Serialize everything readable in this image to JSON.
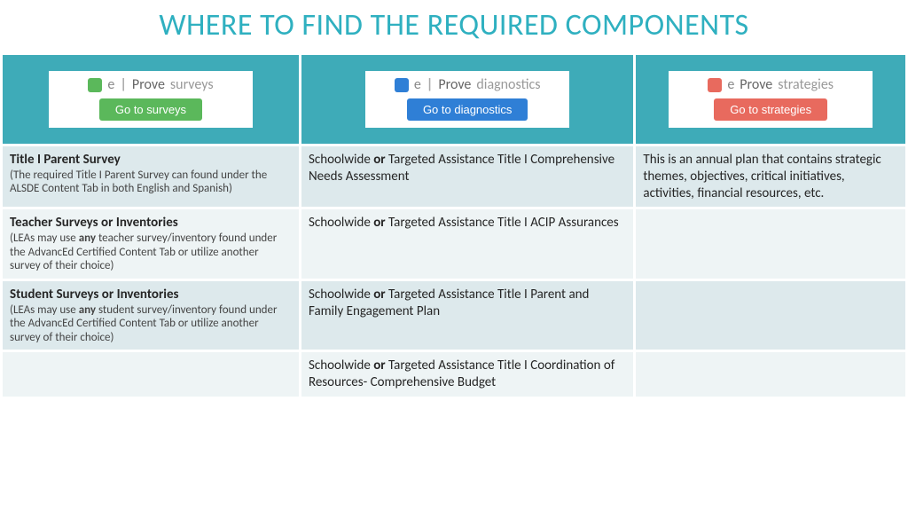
{
  "page_title": "WHERE TO FIND THE REQUIRED COMPONENTS",
  "title_color": "#2fb0c0",
  "header_bg": "#3eabb8",
  "row_colors": [
    "#dde9ec",
    "#eef4f5",
    "#dde9ec",
    "#eef4f5"
  ],
  "columns": [
    {
      "brand_e": "e",
      "brand_prove": "Prove",
      "brand_sub": "surveys",
      "icon_color": "#5bb85b",
      "button_label": "Go to surveys",
      "button_color": "#5bb85b"
    },
    {
      "brand_e": "e",
      "brand_prove": "Prove",
      "brand_sub": "diagnostics",
      "icon_color": "#2f7fd6",
      "button_label": "Go to diagnostics",
      "button_color": "#2f7fd6"
    },
    {
      "brand_e": "e",
      "brand_prove": "Prove",
      "brand_sub": "strategies",
      "icon_color": "#e86a5e",
      "button_label": "Go to strategies",
      "button_color": "#e86a5e"
    }
  ],
  "rows": [
    {
      "c0_title": "Title I Parent Survey",
      "c0_note": "(The required Title I Parent Survey can found under the ALSDE Content Tab in both English and Spanish)",
      "c1_pre": "Schoolwide ",
      "c1_bold": "or",
      "c1_post": " Targeted Assistance Title I Comprehensive Needs Assessment",
      "c2": "This is an annual plan that contains strategic themes, objectives,  critical initiatives, activities, financial resources, etc."
    },
    {
      "c0_title": "Teacher Surveys or Inventories",
      "c0_note_pre": "(LEAs may use ",
      "c0_note_bold": "any",
      "c0_note_post": " teacher survey/inventory found under the AdvancEd Certified Content Tab or utilize another survey of their choice)",
      "c1_pre": "Schoolwide ",
      "c1_bold": "or",
      "c1_post": " Targeted Assistance Title I ACIP Assurances",
      "c2": ""
    },
    {
      "c0_title": "Student Surveys or Inventories",
      "c0_note_pre": "(LEAs may use ",
      "c0_note_bold": "any",
      "c0_note_post": " student survey/inventory found under the AdvancEd Certified Content Tab or utilize another survey of their choice)",
      "c1_pre": "Schoolwide ",
      "c1_bold": "or",
      "c1_post": " Targeted Assistance Title I Parent and Family Engagement Plan",
      "c2": ""
    },
    {
      "c0_title": "",
      "c0_note": "",
      "c1_pre": "Schoolwide ",
      "c1_bold": "or",
      "c1_post": " Targeted Assistance Title I Coordination of Resources- Comprehensive Budget",
      "c2": ""
    }
  ]
}
